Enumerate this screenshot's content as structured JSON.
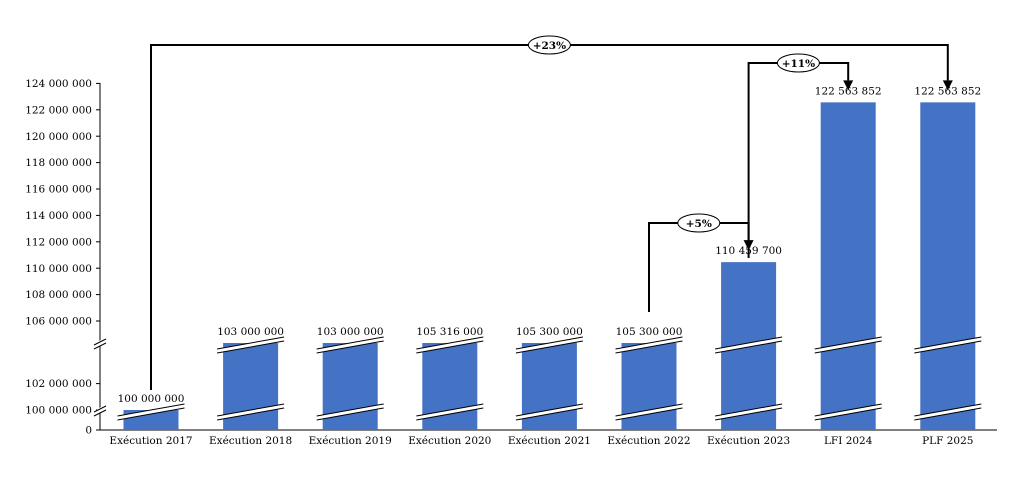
{
  "chart_data": {
    "type": "bar",
    "title": "",
    "xlabel": "",
    "ylabel": "",
    "categories": [
      "Exécution 2017",
      "Exécution 2018",
      "Exécution 2019",
      "Exécution 2020",
      "Exécution 2021",
      "Exécution 2022",
      "Exécution 2023",
      "LFI 2024",
      "PLF 2025"
    ],
    "values": [
      100000000,
      103000000,
      103000000,
      105316000,
      105300000,
      105300000,
      110459700,
      122563852,
      122563852
    ],
    "data_labels": [
      "100 000 000",
      "103 000 000",
      "103 000 000",
      "105 316 000",
      "105 300 000",
      "105 300 000",
      "110 459 700",
      "122 563 852",
      "122 563 852"
    ],
    "y_ticks": [
      {
        "value": 0,
        "label": "0"
      },
      {
        "value": 100000000,
        "label": "100 000 000"
      },
      {
        "value": 102000000,
        "label": "102 000 000"
      },
      {
        "value": 106000000,
        "label": "106 000 000"
      },
      {
        "value": 108000000,
        "label": "108 000 000"
      },
      {
        "value": 110000000,
        "label": "110 000 000"
      },
      {
        "value": 112000000,
        "label": "112 000 000"
      },
      {
        "value": 114000000,
        "label": "114 000 000"
      },
      {
        "value": 116000000,
        "label": "116 000 000"
      },
      {
        "value": 118000000,
        "label": "118 000 000"
      },
      {
        "value": 120000000,
        "label": "120 000 000"
      },
      {
        "value": 122000000,
        "label": "122 000 000"
      },
      {
        "value": 124000000,
        "label": "124 000 000"
      }
    ],
    "ylim": [
      0,
      124000000
    ],
    "axis_break": [
      102000000,
      106000000
    ],
    "bar_color": "#4472C4",
    "growth_annotations": [
      {
        "label": "+23%",
        "from_index": 0,
        "to_index": 8
      },
      {
        "label": "+11%",
        "from_index": 6,
        "to_index": 7
      },
      {
        "label": "+5%",
        "from_index": 5,
        "to_index": 6
      }
    ]
  }
}
